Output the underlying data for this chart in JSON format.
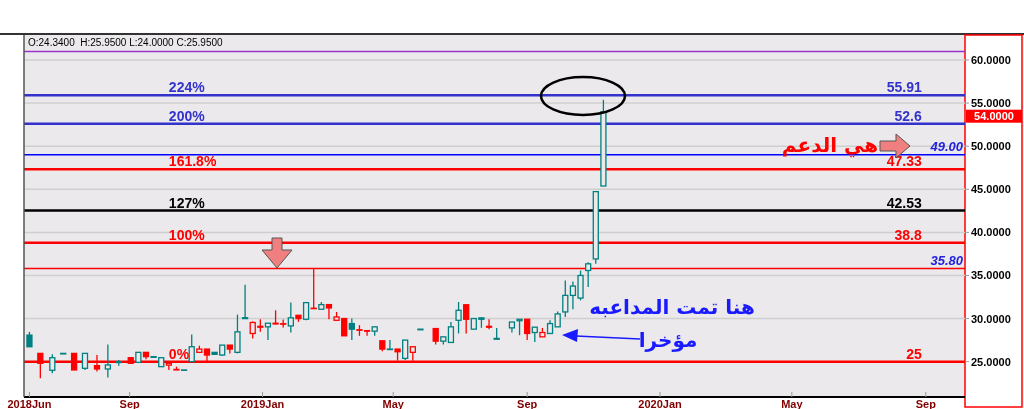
{
  "chart_data": {
    "type": "candlestick",
    "x": [
      "2018-06-01",
      "2018-06-11",
      "2018-06-22",
      "2018-07-02",
      "2018-07-12",
      "2018-07-22",
      "2018-08-02",
      "2018-08-12",
      "2018-08-22",
      "2018-09-02",
      "2018-09-09",
      "2018-09-16",
      "2018-09-23",
      "2018-09-30",
      "2018-10-07",
      "2018-10-14",
      "2018-10-21",
      "2018-10-28",
      "2018-11-04",
      "2018-11-11",
      "2018-11-18",
      "2018-11-25",
      "2018-12-02",
      "2018-12-09",
      "2018-12-16",
      "2018-12-23",
      "2018-12-30",
      "2019-01-06",
      "2019-01-13",
      "2019-01-20",
      "2019-01-27",
      "2019-02-03",
      "2019-02-10",
      "2019-02-17",
      "2019-02-24",
      "2019-03-03",
      "2019-03-10",
      "2019-03-17",
      "2019-03-24",
      "2019-03-31",
      "2019-04-07",
      "2019-04-14",
      "2019-04-21",
      "2019-04-28",
      "2019-05-05",
      "2019-05-12",
      "2019-05-19",
      "2019-05-26",
      "2019-06-09",
      "2019-06-16",
      "2019-06-23",
      "2019-06-30",
      "2019-07-07",
      "2019-07-14",
      "2019-07-21",
      "2019-07-28",
      "2019-08-04",
      "2019-08-18",
      "2019-08-25",
      "2019-09-01",
      "2019-09-08",
      "2019-09-15",
      "2019-09-22",
      "2019-09-29",
      "2019-10-06",
      "2019-10-13",
      "2019-10-20",
      "2019-10-27",
      "2019-11-03",
      "2019-11-10"
    ],
    "ohlc": [
      [
        28.08,
        28.46,
        26.73,
        26.73
      ],
      [
        25.96,
        25.96,
        23.08,
        24.81
      ],
      [
        24.0,
        25.85,
        23.65,
        25.46
      ],
      [
        25.9,
        25.96,
        25.9,
        25.96
      ],
      [
        25.96,
        25.96,
        24.04,
        24.04
      ],
      [
        24.23,
        25.96,
        24.04,
        25.96
      ],
      [
        24.54,
        25.77,
        23.85,
        24.15
      ],
      [
        24.15,
        27.0,
        23.15,
        24.62
      ],
      [
        24.9,
        25.19,
        24.54,
        25.0
      ],
      [
        25.46,
        25.46,
        24.81,
        24.81
      ],
      [
        24.92,
        26.08,
        24.92,
        26.08
      ],
      [
        26.08,
        26.08,
        25.27,
        25.58
      ],
      [
        25.5,
        25.58,
        25.5,
        25.58
      ],
      [
        24.42,
        25.46,
        24.42,
        25.46
      ],
      [
        24.6,
        24.81,
        24.04,
        24.81
      ],
      [
        24.1,
        24.42,
        24.04,
        24.04
      ],
      [
        24.0,
        24.04,
        24.0,
        24.04
      ],
      [
        25.0,
        28.15,
        25.0,
        26.73
      ],
      [
        26.08,
        26.85,
        26.08,
        26.46
      ],
      [
        26.46,
        26.46,
        25.08,
        25.77
      ],
      [
        26.08,
        26.08,
        25.85,
        25.85
      ],
      [
        25.77,
        26.92,
        25.65,
        26.92
      ],
      [
        26.92,
        26.92,
        25.96,
        26.46
      ],
      [
        26.08,
        30.46,
        25.96,
        28.46
      ],
      [
        30.0,
        33.92,
        30.0,
        30.1
      ],
      [
        28.27,
        29.69,
        27.69,
        29.54
      ],
      [
        29.1,
        29.92,
        28.46,
        29.0
      ],
      [
        29.04,
        29.46,
        27.5,
        29.46
      ],
      [
        29.46,
        30.96,
        29.3,
        29.38
      ],
      [
        29.4,
        29.88,
        28.96,
        29.35
      ],
      [
        29.15,
        31.85,
        28.38,
        30.08
      ],
      [
        30.38,
        30.38,
        29.62,
        30.0
      ],
      [
        29.92,
        31.85,
        29.8,
        31.85
      ],
      [
        31.2,
        35.77,
        31.15,
        31.15
      ],
      [
        31.08,
        31.92,
        31.08,
        31.62
      ],
      [
        31.62,
        31.62,
        29.92,
        31.23
      ],
      [
        29.8,
        30.77,
        29.8,
        30.19
      ],
      [
        30.0,
        30.0,
        28.0,
        28.0
      ],
      [
        29.42,
        30.0,
        27.5,
        28.77
      ],
      [
        28.7,
        29.23,
        28.0,
        28.65
      ],
      [
        28.6,
        28.6,
        28.0,
        28.54
      ],
      [
        28.54,
        29.04,
        28.0,
        29.04
      ],
      [
        27.42,
        27.42,
        26.2,
        26.46
      ],
      [
        26.4,
        27.5,
        26.4,
        26.46
      ],
      [
        26.46,
        26.46,
        25.12,
        26.15
      ],
      [
        25.38,
        27.5,
        25.2,
        27.5
      ],
      [
        26.08,
        26.73,
        25.12,
        26.73
      ],
      [
        28.7,
        28.77,
        28.7,
        28.77
      ],
      [
        28.84,
        28.84,
        27.0,
        27.38
      ],
      [
        27.38,
        27.88,
        27.0,
        27.88
      ],
      [
        27.23,
        29.6,
        27.23,
        29.04
      ],
      [
        29.8,
        31.92,
        28.27,
        30.96
      ],
      [
        31.6,
        31.6,
        28.27,
        29.92
      ],
      [
        28.77,
        30.0,
        28.77,
        30.0
      ],
      [
        30.08,
        30.08,
        28.92,
        29.92
      ],
      [
        29.1,
        29.92,
        28.77,
        29.0
      ],
      [
        27.6,
        28.92,
        27.6,
        27.7
      ],
      [
        28.92,
        29.6,
        28.38,
        29.6
      ],
      [
        29.75,
        29.92,
        28.07,
        29.92
      ],
      [
        29.92,
        29.92,
        27.5,
        28.27
      ],
      [
        28.38,
        29.0,
        27.27,
        29.0
      ],
      [
        27.88,
        28.92,
        27.88,
        28.38
      ],
      [
        28.27,
        29.8,
        28.27,
        29.42
      ],
      [
        29.04,
        30.81,
        29.04,
        30.54
      ],
      [
        30.77,
        34.42,
        30.19,
        32.69
      ],
      [
        32.69,
        34.3,
        31.07,
        33.77
      ],
      [
        32.38,
        35.57,
        32.11,
        35.0
      ],
      [
        35.58,
        36.54,
        33.65,
        36.35
      ],
      [
        36.92,
        44.81,
        36.35,
        44.73
      ],
      [
        45.38,
        55.38,
        45.38,
        54.0
      ]
    ],
    "colors": [
      "#008080",
      "#ff0000",
      "#008080",
      "#008080",
      "#ff0000",
      "#008080",
      "#ff0000",
      "#008080",
      "#008080",
      "#ff0000",
      "#008080",
      "#ff0000",
      "#008080",
      "#008080",
      "#ff0000",
      "#ff0000",
      "#008080",
      "#008080",
      "#ff0000",
      "#ff0000",
      "#008080",
      "#008080",
      "#ff0000",
      "#008080",
      "#008080",
      "#ff0000",
      "#ff0000",
      "#008080",
      "#ff0000",
      "#ff0000",
      "#008080",
      "#ff0000",
      "#008080",
      "#ff0000",
      "#008080",
      "#ff0000",
      "#ff0000",
      "#ff0000",
      "#008080",
      "#ff0000",
      "#ff0000",
      "#008080",
      "#ff0000",
      "#008080",
      "#ff0000",
      "#008080",
      "#ff0000",
      "#008080",
      "#ff0000",
      "#008080",
      "#008080",
      "#008080",
      "#ff0000",
      "#008080",
      "#008080",
      "#ff0000",
      "#008080",
      "#008080",
      "#008080",
      "#ff0000",
      "#008080",
      "#ff0000",
      "#008080",
      "#008080",
      "#008080",
      "#008080",
      "#008080",
      "#008080",
      "#008080",
      "#008080"
    ],
    "xlim": [
      "2018-05-27",
      "2020-10-07"
    ],
    "xticks": [
      {
        "value": "2018-06-01",
        "label": "2018Jun"
      },
      {
        "value": "2018-09-01",
        "label": "Sep"
      },
      {
        "value": "2019-01-01",
        "label": "2019Jan"
      },
      {
        "value": "2019-05-01",
        "label": "May"
      },
      {
        "value": "2019-09-01",
        "label": "Sep"
      },
      {
        "value": "2020-01-01",
        "label": "2020Jan"
      },
      {
        "value": "2020-05-01",
        "label": "May"
      },
      {
        "value": "2020-09-01",
        "label": "Sep"
      }
    ],
    "ylim": [
      20.9,
      62.9
    ],
    "yticks": [
      {
        "value": 25,
        "label": "25.0000"
      },
      {
        "value": 30,
        "label": "30.0000"
      },
      {
        "value": 35,
        "label": "35.0000"
      },
      {
        "value": 40,
        "label": "40.0000"
      },
      {
        "value": 45,
        "label": "45.0000"
      },
      {
        "value": 50,
        "label": "50.0000"
      },
      {
        "value": 55,
        "label": "55.0000"
      },
      {
        "value": 60,
        "label": "60.0000"
      }
    ],
    "grid": "y",
    "ref_lines": [
      {
        "axis": "y",
        "value": 61.0,
        "color": "#9933cc"
      },
      {
        "axis": "y",
        "value": 55.91,
        "label": "55.91",
        "color": "#3333cc"
      },
      {
        "axis": "y",
        "value": 52.6,
        "label": "52.6",
        "color": "#3333cc"
      },
      {
        "axis": "y",
        "value": 49.0,
        "label": "49.00",
        "color": "#0000ff"
      },
      {
        "axis": "y",
        "value": 47.33,
        "label": "47.33",
        "color": "#ff0000"
      },
      {
        "axis": "y",
        "value": 42.53,
        "label": "42.53",
        "color": "#000000"
      },
      {
        "axis": "y",
        "value": 38.8,
        "label": "38.8",
        "color": "#ff0000"
      },
      {
        "axis": "y",
        "value": 35.8,
        "label": "35.80",
        "color": "#ff0000"
      },
      {
        "axis": "y",
        "value": 25,
        "label": "25",
        "color": "#ff0000"
      }
    ],
    "annotations": [
      "O:24.3400  H:25.9500 L:24.0000 C:25.9500",
      "54.0000",
      {
        "text": "224%",
        "x": "2018-10-07",
        "y": 55.91
      },
      {
        "text": "200%",
        "x": "2018-10-07",
        "y": 52.6
      },
      {
        "text": "161.8%",
        "x": "2018-10-07",
        "y": 47.33
      },
      {
        "text": "127%",
        "x": "2018-10-07",
        "y": 42.53
      },
      {
        "text": "100%",
        "x": "2018-10-07",
        "y": 38.8
      },
      {
        "text": "0%",
        "x": "2018-10-07",
        "y": 25
      },
      "هي الدعم",
      "هنا تمت المداعبه",
      "مؤخرا"
    ]
  }
}
